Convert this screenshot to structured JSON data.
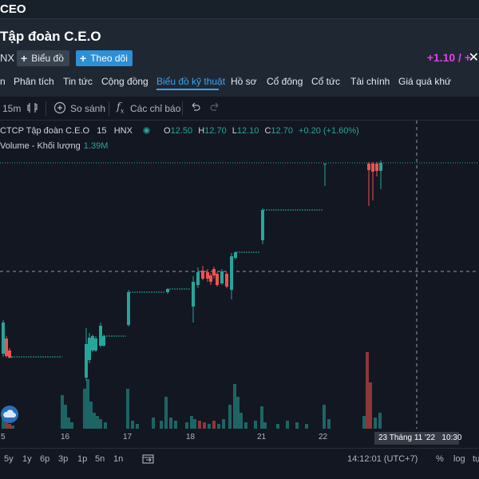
{
  "header": {
    "ticker": "CEO",
    "company_name": "Tập đoàn C.E.O",
    "exchange": "NX",
    "chart_button": "Biểu đồ",
    "follow_button": "Theo dõi",
    "price_change": "+1.10 / +",
    "change_color": "#e040e8"
  },
  "tabs": [
    "n",
    "Phân tích",
    "Tin tức",
    "Cộng đồng",
    "Biểu đồ kỹ thuật",
    "Hồ sơ",
    "Cổ đông",
    "Cổ tức",
    "Tài chính",
    "Giá quá khứ"
  ],
  "active_tab": "Biểu đồ kỹ thuật",
  "toolbar": {
    "interval": "15m",
    "compare": "So sánh",
    "indicators": "Các chỉ báo"
  },
  "legend": {
    "symbol": "CTCP Tập đoàn C.E.O",
    "interval": "15",
    "exchange": "HNX",
    "o_label": "O",
    "o": "12.50",
    "h_label": "H",
    "h": "12.70",
    "l_label": "L",
    "l": "12.10",
    "c_label": "C",
    "c": "12.70",
    "change": "+0.20 (+1.60%)",
    "volume_label": "Volume - Khối lượng",
    "volume_value": "1.39M"
  },
  "x_axis": {
    "labels": [
      "5",
      "16",
      "17",
      "18",
      "21",
      "22"
    ],
    "crosshair_date": "23 Tháng 11 '22",
    "crosshair_time": "10:30"
  },
  "bottom_bar": {
    "ranges": [
      "5y",
      "1y",
      "6p",
      "3p",
      "1p",
      "5n",
      "1n"
    ],
    "clock": "14:12:01 (UTC+7)",
    "percent": "%",
    "log": "log",
    "auto": "tự"
  },
  "chart_data": {
    "type": "candlestick",
    "title": "CTCP Tập đoàn C.E.O",
    "interval_minutes": 15,
    "last_bar": {
      "open": 12.5,
      "high": 12.7,
      "low": 12.1,
      "close": 12.7
    },
    "volume_last": "1.39M",
    "x_categories": [
      "5",
      "16",
      "17",
      "18",
      "21",
      "22"
    ],
    "up_color": "#26a69a",
    "down_color": "#ef5350",
    "grid": false
  }
}
